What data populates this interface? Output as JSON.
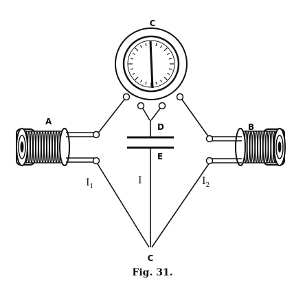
{
  "caption": "Fig. 31.",
  "labels": {
    "galvanometer": "C",
    "bottom_junction": "C",
    "coil_left": "A",
    "coil_right": "B",
    "plate_upper": "D",
    "plate_lower": "E",
    "current_left": "I",
    "current_left_sub": "1",
    "current_middle": "I",
    "current_right": "I",
    "current_right_sub": "2"
  },
  "icons": {
    "galvanometer": "galvanometer-dial-icon",
    "coil_left": "coil-a-icon",
    "coil_right": "coil-b-icon",
    "condenser": "condenser-plates-icon"
  }
}
